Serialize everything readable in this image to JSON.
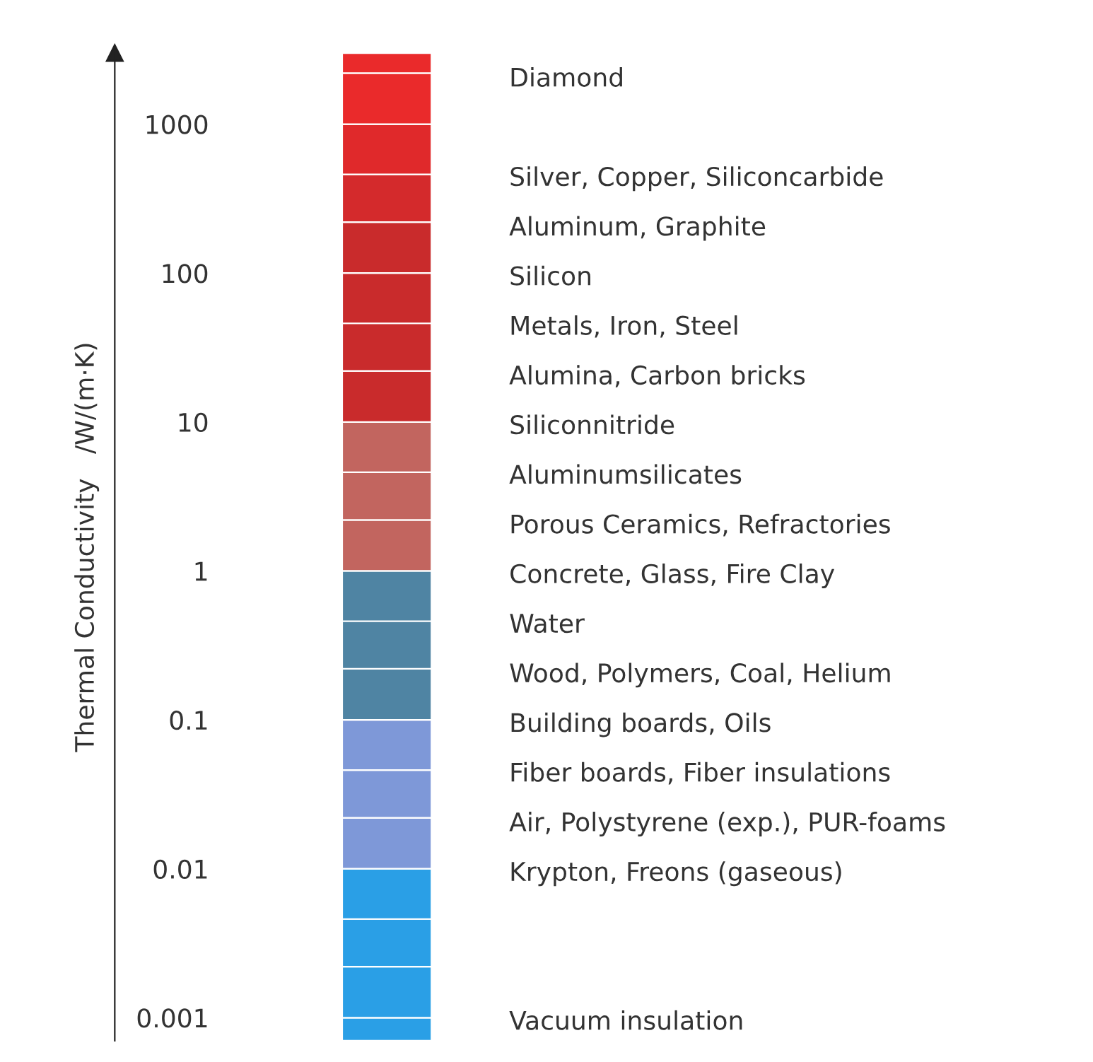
{
  "chart_data": {
    "type": "bar",
    "ylabel": "Thermal Conductivity   /W/(m·K)",
    "log": "y",
    "ylim": [
      0.0007,
      3000
    ],
    "yticks": [
      {
        "value": 1000,
        "label": "1000"
      },
      {
        "value": 100,
        "label": "100"
      },
      {
        "value": 10,
        "label": "10"
      },
      {
        "value": 1,
        "label": "1"
      },
      {
        "value": 0.1,
        "label": "0.1"
      },
      {
        "value": 0.01,
        "label": "0.01"
      },
      {
        "value": 0.001,
        "label": "0.001"
      }
    ],
    "categories": [
      null
    ],
    "series": [
      {
        "color": "#2a9fe6",
        "base": [
          0.0007
        ],
        "values": [
          0.0003
        ]
      },
      {
        "color": "#2a9fe6",
        "base": [
          0.001
        ],
        "values": [
          0.0012
        ]
      },
      {
        "color": "#2a9fe6",
        "base": [
          0.0022
        ],
        "values": [
          0.0024
        ]
      },
      {
        "color": "#2a9fe6",
        "base": [
          0.0046
        ],
        "values": [
          0.0054
        ]
      },
      {
        "color": "#7e98d8",
        "base": [
          0.01
        ],
        "values": [
          0.012
        ]
      },
      {
        "color": "#7e98d8",
        "base": [
          0.022
        ],
        "values": [
          0.024
        ]
      },
      {
        "color": "#7e98d8",
        "base": [
          0.046
        ],
        "values": [
          0.054
        ]
      },
      {
        "color": "#4f84a3",
        "base": [
          0.1
        ],
        "values": [
          0.12
        ]
      },
      {
        "color": "#4f84a3",
        "base": [
          0.22
        ],
        "values": [
          0.24
        ]
      },
      {
        "color": "#4f84a3",
        "base": [
          0.46
        ],
        "values": [
          0.54
        ]
      },
      {
        "color": "#c2655f",
        "base": [
          1
        ],
        "values": [
          1.2
        ]
      },
      {
        "color": "#c2655f",
        "base": [
          2.2
        ],
        "values": [
          2.4
        ]
      },
      {
        "color": "#c2655f",
        "base": [
          4.6
        ],
        "values": [
          5.4
        ]
      },
      {
        "color": "#c92b2c",
        "base": [
          10
        ],
        "values": [
          12
        ]
      },
      {
        "color": "#c92b2c",
        "base": [
          22
        ],
        "values": [
          24
        ]
      },
      {
        "color": "#c92b2c",
        "base": [
          46
        ],
        "values": [
          54
        ]
      },
      {
        "color": "#c92b2c",
        "base": [
          100
        ],
        "values": [
          120
        ]
      },
      {
        "color": "#d42a2c",
        "base": [
          220
        ],
        "values": [
          240
        ]
      },
      {
        "color": "#e0292b",
        "base": [
          460
        ],
        "values": [
          540
        ]
      },
      {
        "color": "#ea2a2b",
        "base": [
          1000
        ],
        "values": [
          1200
        ]
      },
      {
        "color": "#ea2a2b",
        "base": [
          2200
        ],
        "values": [
          800
        ]
      }
    ],
    "annotations": [
      "Diamond",
      "Silver, Copper, Siliconcarbide",
      "Aluminum, Graphite",
      "Silicon",
      "Metals, Iron, Steel",
      "Alumina, Carbon bricks",
      "Siliconnitride",
      "Aluminumsilicates",
      "Porous Ceramics, Refractories",
      "Concrete, Glass, Fire Clay",
      "Water",
      "Wood, Polymers, Coal, Helium",
      "Building boards, Oils",
      "Fiber boards, Fiber insulations",
      "Air, Polystyrene (exp.), PUR-foams",
      "Krypton, Freons (gaseous)",
      "Vacuum insulation"
    ]
  }
}
